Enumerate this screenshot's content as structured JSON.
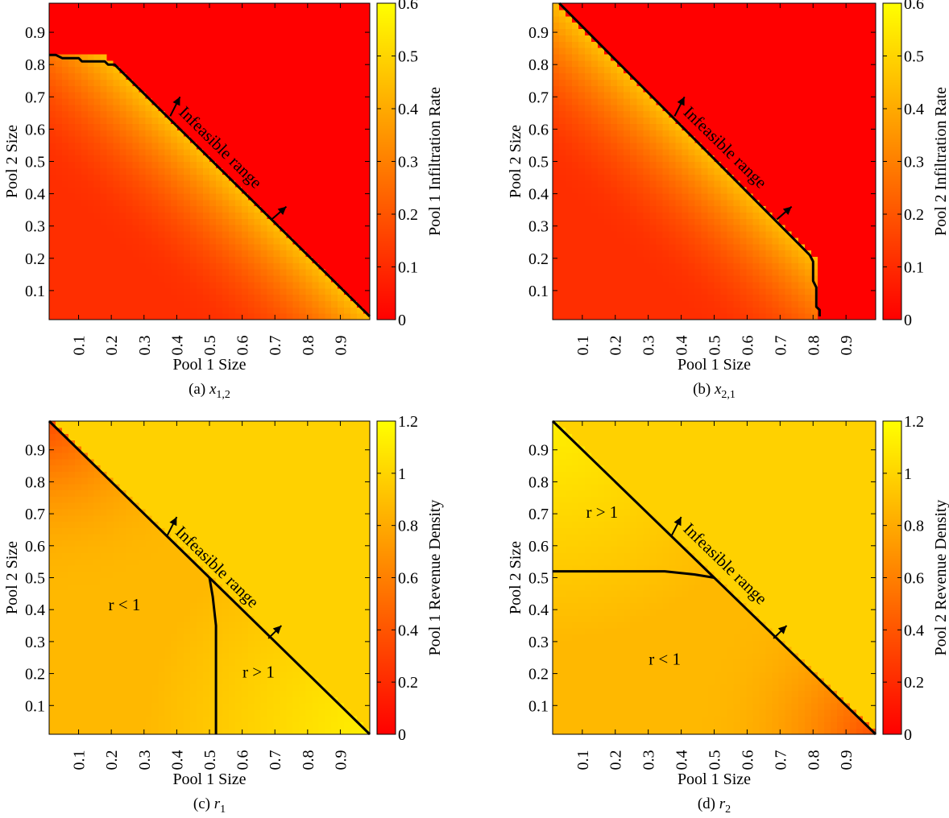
{
  "chart_data": [
    {
      "type": "heatmap",
      "caption_prefix": "(a) ",
      "caption_var": "x",
      "caption_sub": "1,2",
      "xlabel": "Pool 1 Size",
      "ylabel": "Pool 2 Size",
      "colorbar_label": "Pool 1 Infiltration Rate",
      "xticks": [
        "0.1",
        "0.2",
        "0.3",
        "0.4",
        "0.5",
        "0.6",
        "0.7",
        "0.8",
        "0.9"
      ],
      "yticks": [
        "0.1",
        "0.2",
        "0.3",
        "0.4",
        "0.5",
        "0.6",
        "0.7",
        "0.8",
        "0.9"
      ],
      "colorbar_ticks": [
        "0",
        "0.1",
        "0.2",
        "0.3",
        "0.4",
        "0.5",
        "0.6"
      ],
      "colorbar_range": [
        0,
        0.6
      ],
      "xlim": [
        0.01,
        0.99
      ],
      "ylim": [
        0.01,
        0.99
      ],
      "colormap": [
        "#ff0000",
        "#ffff00"
      ],
      "value_model": "infiltration_pool1",
      "boundary": [
        [
          0.01,
          0.83
        ],
        [
          0.03,
          0.83
        ],
        [
          0.05,
          0.82
        ],
        [
          0.1,
          0.82
        ],
        [
          0.11,
          0.81
        ],
        [
          0.18,
          0.81
        ],
        [
          0.19,
          0.8
        ],
        [
          0.21,
          0.8
        ],
        [
          0.99,
          0.02
        ]
      ],
      "separator": [],
      "arrows": [
        [
          0.38,
          0.64,
          0.41,
          0.7
        ],
        [
          0.69,
          0.32,
          0.735,
          0.36
        ]
      ],
      "annotations": [
        {
          "text": "Infeasible range",
          "x": 0.53,
          "y": 0.54,
          "rotate": true
        }
      ]
    },
    {
      "type": "heatmap",
      "caption_prefix": "(b) ",
      "caption_var": "x",
      "caption_sub": "2,1",
      "xlabel": "Pool 1 Size",
      "ylabel": "Pool 2 Size",
      "colorbar_label": "Pool 2 Infiltration Rate",
      "xticks": [
        "0.1",
        "0.2",
        "0.3",
        "0.4",
        "0.5",
        "0.6",
        "0.7",
        "0.8",
        "0.9"
      ],
      "yticks": [
        "0.1",
        "0.2",
        "0.3",
        "0.4",
        "0.5",
        "0.6",
        "0.7",
        "0.8",
        "0.9"
      ],
      "colorbar_ticks": [
        "0",
        "0.1",
        "0.2",
        "0.3",
        "0.4",
        "0.5",
        "0.6"
      ],
      "colorbar_range": [
        0,
        0.6
      ],
      "xlim": [
        0.01,
        0.99
      ],
      "ylim": [
        0.01,
        0.99
      ],
      "colormap": [
        "#ff0000",
        "#ffff00"
      ],
      "value_model": "infiltration_pool2",
      "boundary": [
        [
          0.03,
          0.99
        ],
        [
          0.79,
          0.21
        ],
        [
          0.8,
          0.19
        ],
        [
          0.8,
          0.13
        ],
        [
          0.81,
          0.11
        ],
        [
          0.81,
          0.05
        ],
        [
          0.82,
          0.04
        ],
        [
          0.82,
          0.02
        ]
      ],
      "separator": [],
      "arrows": [
        [
          0.38,
          0.64,
          0.41,
          0.7
        ],
        [
          0.69,
          0.32,
          0.735,
          0.36
        ]
      ],
      "annotations": [
        {
          "text": "Infeasible range",
          "x": 0.53,
          "y": 0.54,
          "rotate": true
        }
      ]
    },
    {
      "type": "heatmap",
      "caption_prefix": "(c) ",
      "caption_var": "r",
      "caption_sub": "1",
      "xlabel": "Pool 1 Size",
      "ylabel": "Pool 2 Size",
      "colorbar_label": "Pool 1 Revenue Density",
      "xticks": [
        "0.1",
        "0.2",
        "0.3",
        "0.4",
        "0.5",
        "0.6",
        "0.7",
        "0.8",
        "0.9"
      ],
      "yticks": [
        "0.1",
        "0.2",
        "0.3",
        "0.4",
        "0.5",
        "0.6",
        "0.7",
        "0.8",
        "0.9"
      ],
      "colorbar_ticks": [
        "0",
        "0.2",
        "0.4",
        "0.6",
        "0.8",
        "1",
        "1.2"
      ],
      "colorbar_range": [
        0,
        1.2
      ],
      "xlim": [
        0.01,
        0.99
      ],
      "ylim": [
        0.01,
        0.99
      ],
      "colormap": [
        "#ff0000",
        "#ffff00"
      ],
      "value_model": "revenue_pool1",
      "boundary": [
        [
          0.01,
          0.99
        ],
        [
          0.99,
          0.01
        ]
      ],
      "separator": [
        [
          0.5,
          0.5
        ],
        [
          0.51,
          0.44
        ],
        [
          0.52,
          0.35
        ],
        [
          0.52,
          0.2
        ],
        [
          0.52,
          0.01
        ]
      ],
      "arrows": [
        [
          0.37,
          0.63,
          0.4,
          0.69
        ],
        [
          0.68,
          0.31,
          0.72,
          0.35
        ]
      ],
      "annotations": [
        {
          "text": "Infeasible range",
          "x": 0.52,
          "y": 0.53,
          "rotate": true
        },
        {
          "text": "r < 1",
          "x": 0.24,
          "y": 0.41,
          "rotate": false
        },
        {
          "text": "r > 1",
          "x": 0.65,
          "y": 0.2,
          "rotate": false
        }
      ]
    },
    {
      "type": "heatmap",
      "caption_prefix": "(d) ",
      "caption_var": "r",
      "caption_sub": "2",
      "xlabel": "Pool 1 Size",
      "ylabel": "Pool 2 Size",
      "colorbar_label": "Pool 2 Revenue Density",
      "xticks": [
        "0.1",
        "0.2",
        "0.3",
        "0.4",
        "0.5",
        "0.6",
        "0.7",
        "0.8",
        "0.9"
      ],
      "yticks": [
        "0.1",
        "0.2",
        "0.3",
        "0.4",
        "0.5",
        "0.6",
        "0.7",
        "0.8",
        "0.9"
      ],
      "colorbar_ticks": [
        "0",
        "0.2",
        "0.4",
        "0.6",
        "0.8",
        "1",
        "1.2"
      ],
      "colorbar_range": [
        0,
        1.2
      ],
      "xlim": [
        0.01,
        0.99
      ],
      "ylim": [
        0.01,
        0.99
      ],
      "colormap": [
        "#ff0000",
        "#ffff00"
      ],
      "value_model": "revenue_pool2",
      "boundary": [
        [
          0.01,
          0.99
        ],
        [
          0.99,
          0.01
        ]
      ],
      "separator": [
        [
          0.01,
          0.52
        ],
        [
          0.2,
          0.52
        ],
        [
          0.35,
          0.52
        ],
        [
          0.44,
          0.51
        ],
        [
          0.5,
          0.5
        ]
      ],
      "arrows": [
        [
          0.37,
          0.63,
          0.4,
          0.69
        ],
        [
          0.68,
          0.31,
          0.72,
          0.35
        ]
      ],
      "annotations": [
        {
          "text": "Infeasible range",
          "x": 0.53,
          "y": 0.54,
          "rotate": true
        },
        {
          "text": "r > 1",
          "x": 0.16,
          "y": 0.7,
          "rotate": false
        },
        {
          "text": "r < 1",
          "x": 0.35,
          "y": 0.24,
          "rotate": false
        }
      ]
    }
  ]
}
